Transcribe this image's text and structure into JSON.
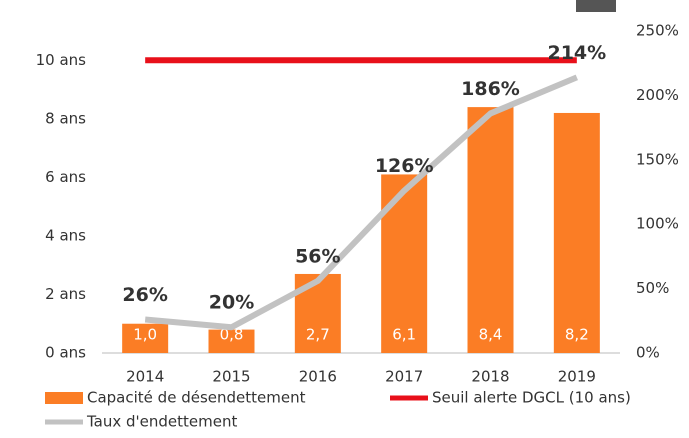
{
  "chart_data": {
    "type": "bar",
    "categories": [
      "2014",
      "2015",
      "2016",
      "2017",
      "2018",
      "2019"
    ],
    "series": [
      {
        "name": "Capacité de désendettement",
        "type": "bar",
        "color": "#fb7d25",
        "values": [
          1.0,
          0.8,
          2.7,
          6.1,
          8.4,
          8.2
        ],
        "value_labels": [
          "1,0",
          "0,8",
          "2,7",
          "6,1",
          "8,4",
          "8,2"
        ]
      },
      {
        "name": "Seuil alerte DGCL (10 ans)",
        "type": "line",
        "color": "#e8101a",
        "values": [
          10,
          10,
          10,
          10,
          10,
          10
        ]
      },
      {
        "name": "Taux d'endettement",
        "type": "line",
        "axis": "y2",
        "color": "#c2c2c2",
        "values": [
          26,
          20,
          56,
          126,
          186,
          214
        ],
        "value_labels": [
          "26%",
          "20%",
          "56%",
          "126%",
          "186%",
          "214%"
        ]
      }
    ],
    "ylim": [
      0,
      11
    ],
    "yticks": [
      {
        "value": 0,
        "label": "0 ans"
      },
      {
        "value": 2,
        "label": "2 ans"
      },
      {
        "value": 4,
        "label": "4 ans"
      },
      {
        "value": 6,
        "label": "6 ans"
      },
      {
        "value": 8,
        "label": "8 ans"
      },
      {
        "value": 10,
        "label": "10 ans"
      }
    ],
    "y2lim": [
      0,
      250
    ],
    "y2ticks": [
      {
        "value": 0,
        "label": "0%"
      },
      {
        "value": 50,
        "label": "50%"
      },
      {
        "value": 100,
        "label": "100%"
      },
      {
        "value": 150,
        "label": "150%"
      },
      {
        "value": 200,
        "label": "200%"
      },
      {
        "value": 250,
        "label": "250%"
      }
    ],
    "legend": "bottom"
  }
}
